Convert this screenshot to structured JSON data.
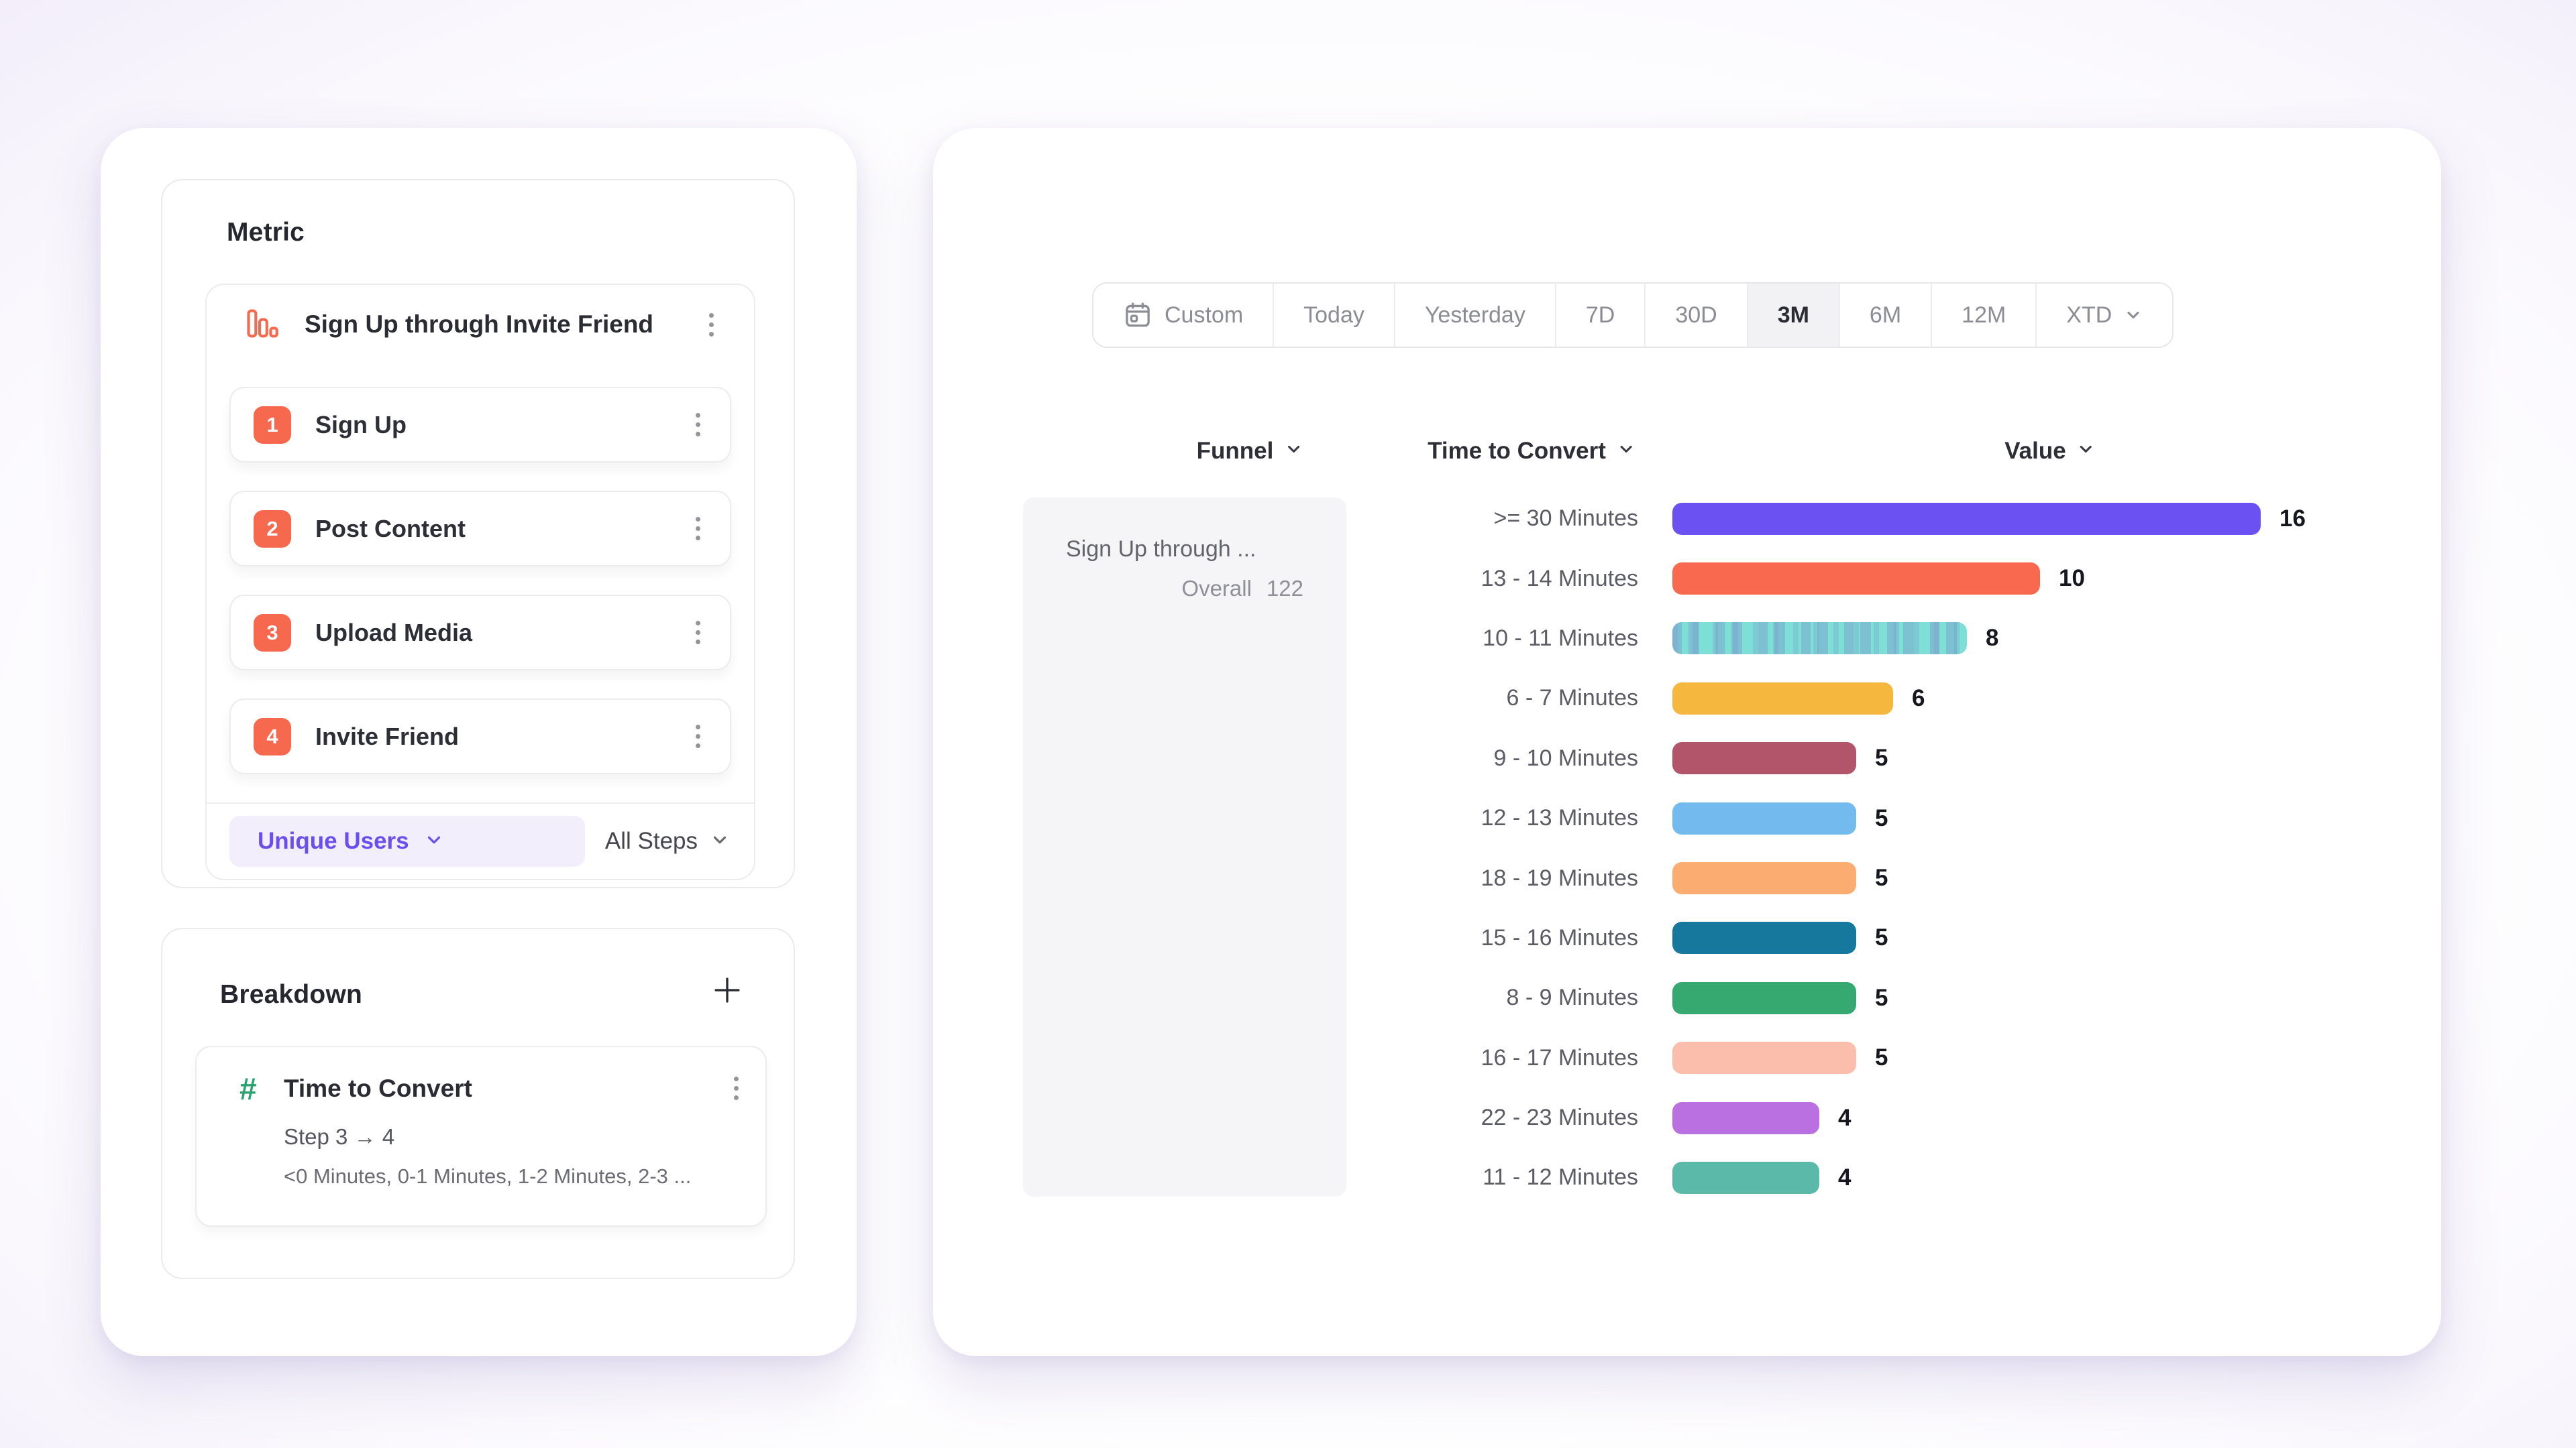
{
  "metric_panel": {
    "title": "Metric",
    "funnel": {
      "icon": "bar-chart-icon",
      "name": "Sign Up through Invite Friend",
      "steps": [
        {
          "num": "1",
          "label": "Sign Up"
        },
        {
          "num": "2",
          "label": "Post Content"
        },
        {
          "num": "3",
          "label": "Upload Media"
        },
        {
          "num": "4",
          "label": "Invite Friend"
        }
      ],
      "counting_dropdown": "Unique Users",
      "scope_dropdown": "All Steps"
    }
  },
  "breakdown_panel": {
    "title": "Breakdown",
    "add_icon": "plus-icon",
    "property": {
      "icon": "hash-icon",
      "name": "Time to Convert",
      "step_range": "Step 3 → 4",
      "buckets_preview": "<0 Minutes, 0-1 Minutes, 1-2 Minutes, 2-3 ..."
    }
  },
  "toolbar": {
    "ranges": [
      "Custom",
      "Today",
      "Yesterday",
      "7D",
      "30D",
      "3M",
      "6M",
      "12M",
      "XTD"
    ],
    "selected": "3M",
    "custom_icon": "calendar-icon",
    "xtd_icon": "chevron-down-icon"
  },
  "table": {
    "columns": [
      "Funnel",
      "Time to Convert",
      "Value"
    ],
    "funnel_cell": {
      "name": "Sign Up through ...",
      "overall_label": "Overall",
      "overall_value": "122"
    }
  },
  "chart_data": {
    "type": "bar",
    "orientation": "horizontal",
    "categories": [
      ">= 30 Minutes",
      "13 - 14 Minutes",
      "10 - 11 Minutes",
      "6 - 7 Minutes",
      "9 - 10 Minutes",
      "12 - 13 Minutes",
      "18 - 19 Minutes",
      "15 - 16 Minutes",
      "8 - 9 Minutes",
      "16 - 17 Minutes",
      "22 - 23 Minutes",
      "11 - 12 Minutes"
    ],
    "values": [
      16,
      10,
      8,
      6,
      5,
      5,
      5,
      5,
      5,
      5,
      4,
      4
    ],
    "colors": [
      "#6B51F2",
      "#F8694F",
      "#7DDFD5",
      "#F5B73D",
      "#B2556B",
      "#73BAEF",
      "#FBAC71",
      "#17789D",
      "#35A970",
      "#FBBEAD",
      "#BA70E0",
      "#5BB9AA"
    ],
    "patterned_categories": [
      "10 - 11 Minutes"
    ],
    "value_labels": true,
    "xlim": [
      0,
      16
    ],
    "grid": false,
    "legend": "none"
  },
  "theme": {
    "accent_purple": "#6B4EF0",
    "step_badge_orange": "#F7694F",
    "hash_green": "#2AA26E",
    "panel_gray": "#F5F5F7",
    "selected_range_bg": "#F2F2F4"
  }
}
